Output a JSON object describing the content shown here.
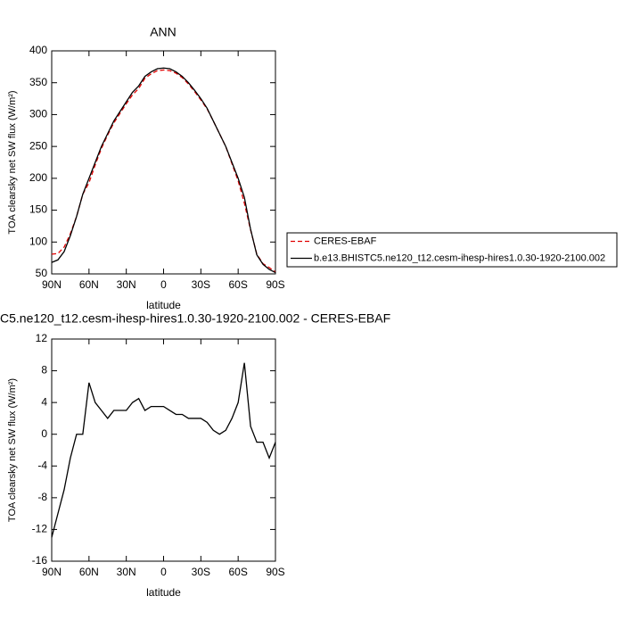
{
  "chart_data": [
    {
      "type": "line",
      "title": "ANN",
      "xlabel": "latitude",
      "ylabel": "TOA clearsky net SW flux (W/m²)",
      "x": [
        90,
        85,
        80,
        75,
        70,
        65,
        60,
        55,
        50,
        45,
        40,
        35,
        30,
        25,
        20,
        15,
        10,
        5,
        0,
        -5,
        -10,
        -15,
        -20,
        -25,
        -30,
        -35,
        -40,
        -45,
        -50,
        -55,
        -60,
        -65,
        -70,
        -75,
        -80,
        -85,
        -90
      ],
      "xlim": [
        90,
        -90
      ],
      "xticks": [
        {
          "value": 90,
          "label": "90N"
        },
        {
          "value": 60,
          "label": "60N"
        },
        {
          "value": 30,
          "label": "30N"
        },
        0,
        {
          "value": -30,
          "label": "30S"
        },
        {
          "value": -60,
          "label": "60S"
        },
        {
          "value": -90,
          "label": "90S"
        }
      ],
      "ylim": [
        50,
        400
      ],
      "yticks": [
        50,
        100,
        150,
        200,
        250,
        300,
        350,
        400
      ],
      "series": [
        {
          "name": "CERES-EBAF",
          "color": "#e00000",
          "dashed": true,
          "values": [
            81,
            82,
            92,
            113,
            140,
            175,
            193,
            221,
            247,
            268,
            287,
            302,
            317,
            331,
            341,
            357,
            364,
            369,
            370,
            369,
            365,
            358,
            348,
            336,
            323,
            309,
            290,
            270,
            250,
            223,
            196,
            161,
            119,
            81,
            66,
            60,
            53
          ]
        },
        {
          "name": "b.e13.BHISTC5.ne120_t12.cesm-ihesp-hires1.0.30-1920-2100.002",
          "color": "#000000",
          "dashed": false,
          "values": [
            68,
            72,
            85,
            110,
            140,
            175,
            200,
            225,
            250,
            270,
            290,
            305,
            320,
            335,
            345,
            360,
            367,
            372,
            373,
            372,
            367,
            360,
            350,
            338,
            325,
            310,
            290,
            270,
            250,
            225,
            200,
            170,
            120,
            80,
            65,
            57,
            52
          ]
        }
      ]
    },
    {
      "type": "line",
      "title": "C5.ne120_t12.cesm-ihesp-hires1.0.30-1920-2100.002 - CERES-EBAF",
      "xlabel": "latitude",
      "ylabel": "TOA clearsky net SW flux (W/m²)",
      "x": [
        90,
        85,
        80,
        75,
        70,
        65,
        60,
        55,
        50,
        45,
        40,
        35,
        30,
        25,
        20,
        15,
        10,
        5,
        0,
        -5,
        -10,
        -15,
        -20,
        -25,
        -30,
        -35,
        -40,
        -45,
        -50,
        -55,
        -60,
        -65,
        -70,
        -75,
        -80,
        -85,
        -90
      ],
      "xlim": [
        90,
        -90
      ],
      "xticks": [
        {
          "value": 90,
          "label": "90N"
        },
        {
          "value": 60,
          "label": "60N"
        },
        {
          "value": 30,
          "label": "30N"
        },
        0,
        {
          "value": -30,
          "label": "30S"
        },
        {
          "value": -60,
          "label": "60S"
        },
        {
          "value": -90,
          "label": "90S"
        }
      ],
      "ylim": [
        -16,
        12
      ],
      "yticks": [
        -16,
        -12,
        -8,
        -4,
        0,
        4,
        8,
        12
      ],
      "series": [
        {
          "color": "#000000",
          "dashed": false,
          "values": [
            -13,
            -10,
            -7,
            -3,
            0,
            0,
            6.5,
            4,
            3,
            2,
            3,
            3,
            3,
            4,
            4.5,
            3,
            3.5,
            3.5,
            3.5,
            3,
            2.5,
            2.5,
            2,
            2,
            2,
            1.5,
            0.5,
            0,
            0.5,
            2,
            4,
            9,
            1,
            -1,
            -1,
            -3,
            -1
          ]
        }
      ]
    }
  ]
}
